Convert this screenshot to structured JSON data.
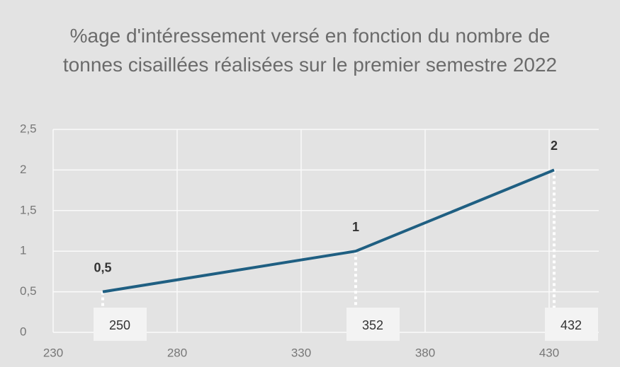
{
  "chart_data": {
    "type": "line",
    "title": "%age d'intéressement versé en fonction du nombre de tonnes cisaillées réalisées sur le premier semestre 2022",
    "x": [
      250,
      352,
      432
    ],
    "series": [
      {
        "color": "#1f5f82",
        "values": [
          0.5,
          1,
          2
        ],
        "value_labels": [
          "0,5",
          "1",
          "2"
        ]
      }
    ],
    "xlim": [
      230,
      450
    ],
    "ylim": [
      0,
      2.5
    ],
    "xticks": [
      230,
      280,
      330,
      380,
      430
    ],
    "yticks": [
      0,
      {
        "value": 0.5,
        "label": "0,5"
      },
      1,
      {
        "value": 1.5,
        "label": "1,5"
      },
      2,
      {
        "value": 2.5,
        "label": "2,5"
      }
    ],
    "grid": true
  }
}
